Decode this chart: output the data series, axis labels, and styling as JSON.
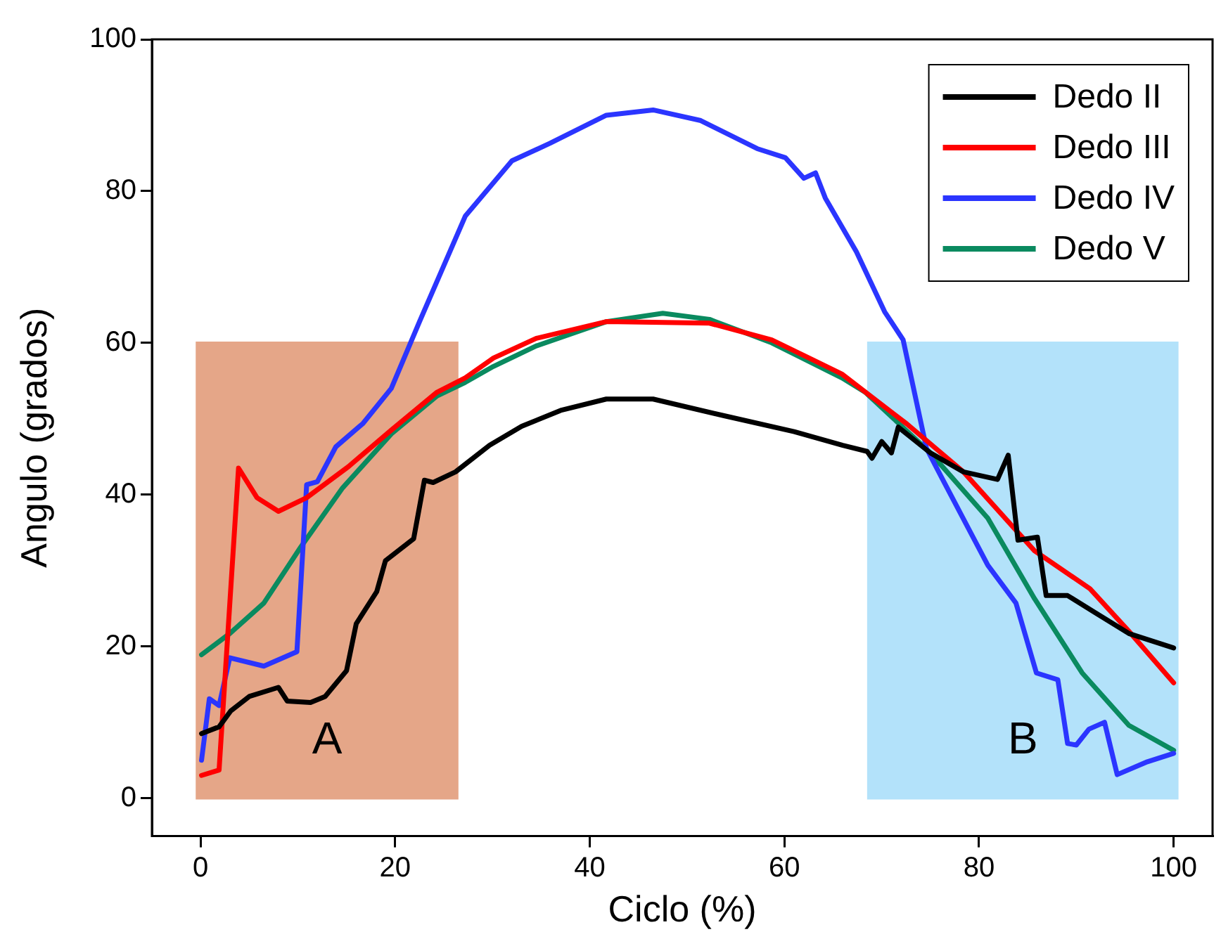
{
  "chart_data": {
    "type": "line",
    "xlabel": "Ciclo (%)",
    "ylabel": "Angulo (grados)",
    "xlim": [
      -5,
      104
    ],
    "ylim": [
      -5,
      100
    ],
    "xticks": [
      0,
      20,
      40,
      60,
      80,
      100
    ],
    "yticks": [
      0,
      20,
      40,
      60,
      80,
      100
    ],
    "grid": false,
    "legend": "top right",
    "marker": "none",
    "line_style": "solid",
    "bands": [
      {
        "axis": "x",
        "from": -0.5,
        "to": 26.5,
        "label": "A",
        "color": "#e5a688"
      },
      {
        "axis": "x",
        "from": 68.5,
        "to": 100.5,
        "label": "B",
        "color": "#b3e2fa"
      }
    ],
    "series": [
      {
        "name": "Dedo II",
        "color": "#000000",
        "x": [
          0.1,
          1.9,
          3.1,
          5,
          8,
          8.9,
          11.3,
          12.8,
          15,
          16,
          18.1,
          19,
          21.9,
          23,
          23.9,
          26.2,
          29.7,
          33,
          37,
          41.7,
          46.5,
          53.8,
          61,
          66,
          68.5,
          69,
          70,
          71,
          71.7,
          75,
          78.4,
          81.9,
          83,
          84,
          86,
          86.9,
          89.1,
          92,
          95.4,
          100
        ],
        "values": [
          8.5,
          9.4,
          11.5,
          13.4,
          14.6,
          12.8,
          12.6,
          13.4,
          16.8,
          23,
          27.2,
          31.3,
          34.2,
          41.9,
          41.6,
          43,
          46.5,
          49,
          51.1,
          52.6,
          52.6,
          50.4,
          48.3,
          46.5,
          45.7,
          44.8,
          47,
          45.5,
          48.9,
          45.5,
          43,
          42,
          45.2,
          34,
          34.4,
          26.7,
          26.7,
          24.4,
          21.7,
          19.8
        ]
      },
      {
        "name": "Dedo III",
        "color": "#ff0000",
        "x": [
          0.1,
          1.9,
          3.9,
          5.8,
          8,
          10.9,
          15.2,
          19.6,
          24.3,
          27.2,
          30.1,
          34.5,
          41.7,
          52.3,
          58.7,
          65.9,
          72.6,
          78.4,
          85.7,
          91.4,
          95.4,
          100
        ],
        "values": [
          3,
          3.7,
          43.5,
          39.6,
          37.8,
          39.6,
          43.7,
          48.5,
          53.5,
          55.4,
          58,
          60.6,
          62.8,
          62.6,
          60.4,
          55.9,
          49.3,
          43,
          32.6,
          27.6,
          22,
          15.2
        ]
      },
      {
        "name": "Dedo IV",
        "color": "#2b35ff",
        "x": [
          0.1,
          0.9,
          1.9,
          3,
          6.5,
          9.9,
          10.9,
          12,
          13.9,
          16.7,
          19.6,
          22.5,
          27.2,
          32,
          35.9,
          41.7,
          46.5,
          51.4,
          57.2,
          60.1,
          62,
          63.2,
          64.2,
          67.4,
          70.3,
          72.2,
          74.6,
          76.1,
          80.9,
          83.8,
          85.9,
          88.1,
          89.1,
          90,
          91.3,
          92.9,
          94.2,
          97.3,
          100
        ],
        "values": [
          5,
          13.1,
          12.2,
          18.5,
          17.4,
          19.3,
          41.3,
          41.7,
          46.3,
          49.4,
          54,
          62.8,
          76.7,
          84,
          86.3,
          90,
          90.7,
          89.3,
          85.6,
          84.4,
          81.7,
          82.4,
          79.1,
          72,
          64.1,
          60.4,
          46.1,
          42.4,
          30.7,
          25.7,
          16.5,
          15.6,
          7.2,
          7,
          9.1,
          10,
          3.1,
          4.8,
          5.9
        ]
      },
      {
        "name": "Dedo V",
        "color": "#0a8a5f",
        "x": [
          0.1,
          3,
          6.5,
          10.3,
          14.6,
          19.6,
          24.3,
          27.2,
          30.1,
          34.5,
          41.7,
          47.5,
          52.3,
          58.7,
          65.9,
          68.3,
          75,
          80.9,
          85.7,
          90.6,
          95.4,
          100
        ],
        "values": [
          18.9,
          21.7,
          25.7,
          33.1,
          40.9,
          48,
          53,
          54.8,
          56.9,
          59.6,
          62.8,
          63.9,
          63.1,
          60,
          55.4,
          53.5,
          45.5,
          36.9,
          26.3,
          16.5,
          9.6,
          6.3
        ]
      }
    ]
  }
}
